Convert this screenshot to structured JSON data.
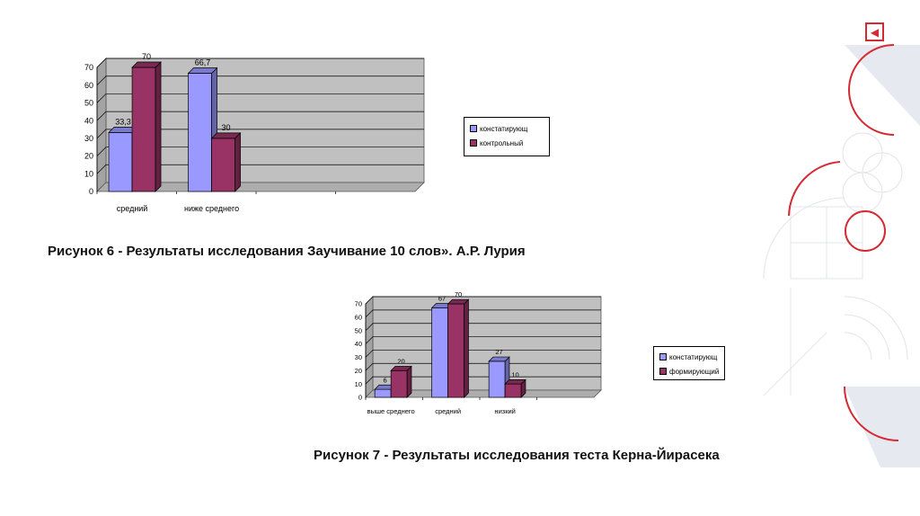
{
  "chart_data": [
    {
      "type": "bar",
      "categories": [
        "средний",
        "ниже среднего",
        "",
        ""
      ],
      "series": [
        {
          "name": "констатирующ",
          "values": [
            33.3,
            66.7,
            null,
            null
          ],
          "labels": [
            "33,3",
            "66,7",
            "",
            ""
          ]
        },
        {
          "name": "контрольный",
          "values": [
            70,
            30,
            null,
            null
          ],
          "labels": [
            "70",
            "30",
            "",
            ""
          ]
        }
      ],
      "ylim": [
        0,
        70
      ],
      "yticks": [
        "0",
        "10",
        "20",
        "30",
        "40",
        "50",
        "60",
        "70"
      ],
      "title": "",
      "xlabel": "",
      "ylabel": "",
      "grid": true,
      "legend": "right"
    },
    {
      "type": "bar",
      "categories": [
        "выше среднего",
        "средний",
        "низкий",
        ""
      ],
      "series": [
        {
          "name": "констатирующ",
          "values": [
            6,
            67,
            27,
            null
          ],
          "labels": [
            "6",
            "67",
            "27",
            ""
          ]
        },
        {
          "name": "формирующий",
          "values": [
            20,
            70,
            10,
            null
          ],
          "labels": [
            "20",
            "70",
            "10",
            ""
          ]
        }
      ],
      "ylim": [
        0,
        70
      ],
      "yticks": [
        "0",
        "10",
        "20",
        "30",
        "40",
        "50",
        "60",
        "70"
      ],
      "title": "",
      "xlabel": "",
      "ylabel": "",
      "grid": true,
      "legend": "right"
    }
  ],
  "colors": {
    "series1": "#9999ff",
    "series2": "#993366",
    "plot_bg": "#c0c0c0",
    "accent": "#d42a33"
  },
  "captions": {
    "figure6": "Рисунок 6 - Результаты исследования Заучивание 10 слов». А.Р. Лурия",
    "figure7": "Рисунок 7 - Результаты исследования теста Керна-Йирасека"
  },
  "legend1": {
    "item1": "констатирующ",
    "item2": "контрольный"
  },
  "legend2": {
    "item1": "констатирующ",
    "item2": "формирующий"
  },
  "icons": {
    "nav": "back-arrow-icon"
  }
}
